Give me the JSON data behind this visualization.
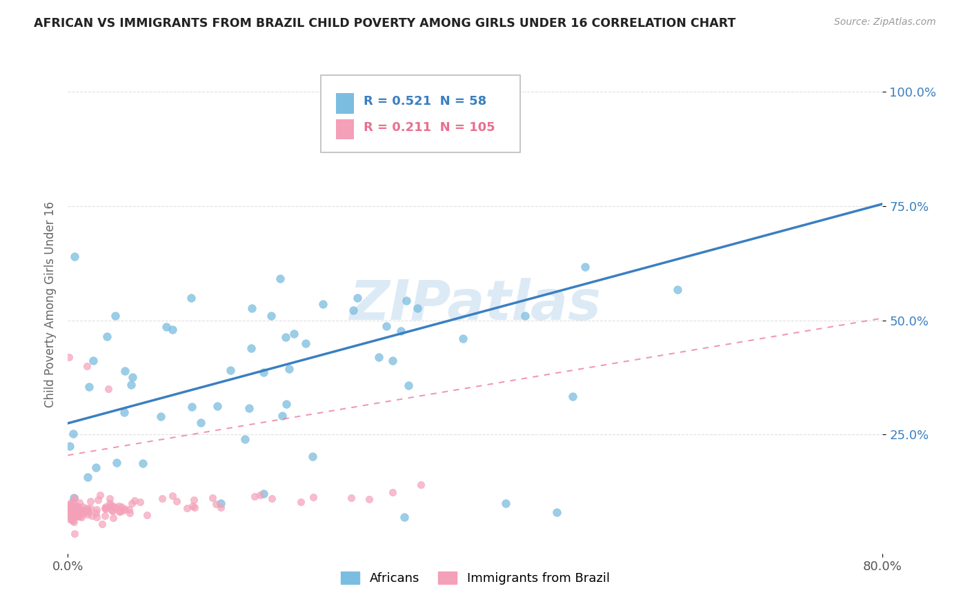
{
  "title": "AFRICAN VS IMMIGRANTS FROM BRAZIL CHILD POVERTY AMONG GIRLS UNDER 16 CORRELATION CHART",
  "source": "Source: ZipAtlas.com",
  "ylabel": "Child Poverty Among Girls Under 16",
  "xlim": [
    0.0,
    0.8
  ],
  "ylim": [
    -0.01,
    1.08
  ],
  "yticks": [
    0.25,
    0.5,
    0.75,
    1.0
  ],
  "yticklabels": [
    "25.0%",
    "50.0%",
    "75.0%",
    "100.0%"
  ],
  "africans_color": "#7bbde0",
  "brazil_color": "#f4a0b8",
  "africans_R": 0.521,
  "africans_N": 58,
  "brazil_R": 0.211,
  "brazil_N": 105,
  "watermark": "ZIPatlas",
  "background_color": "#ffffff",
  "grid_color": "#e0e0e0",
  "legend_items": [
    "Africans",
    "Immigrants from Brazil"
  ],
  "africans_line_color": "#3a7fc1",
  "brazil_line_color": "#e87090",
  "africans_line_style": "solid",
  "brazil_line_style": "dashed",
  "africans_line_start_y": 0.275,
  "africans_line_end_y": 0.755,
  "brazil_line_start_y": 0.205,
  "brazil_line_end_y": 0.505
}
